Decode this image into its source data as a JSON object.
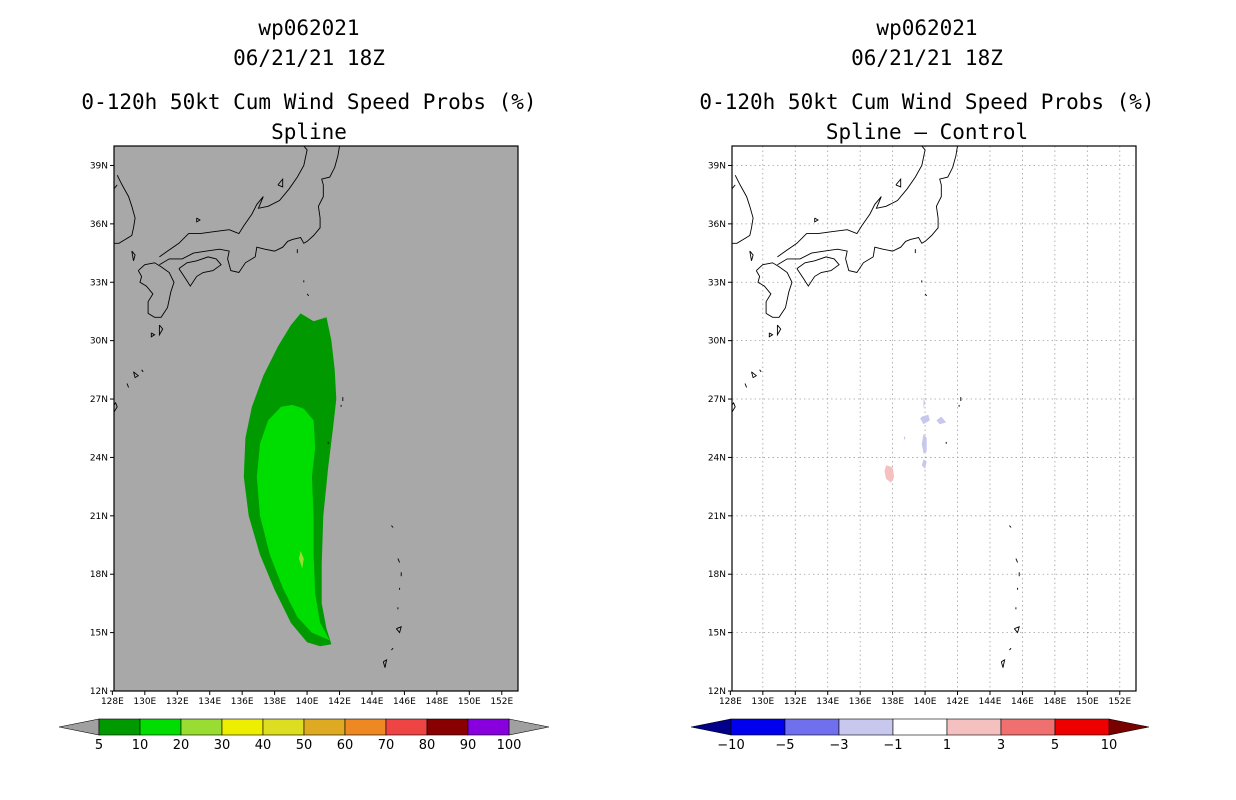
{
  "panels": [
    {
      "title_id": "wp062021",
      "title_date": "06/21/21 18Z",
      "title_product": "0-120h 50kt Cum Wind Speed Probs (%)",
      "title_subtitle": "Spline",
      "colorbar": {
        "labels": [
          "5",
          "10",
          "20",
          "30",
          "40",
          "50",
          "60",
          "70",
          "80",
          "90",
          "100"
        ],
        "colors": [
          "#009900",
          "#00dd00",
          "#99dd33",
          "#eeee00",
          "#dddd22",
          "#ddaa22",
          "#ee8822",
          "#ee4444",
          "#880000",
          "#8800dd"
        ],
        "under_color": "#a0a0a0",
        "over_color": "#a0a0a0"
      },
      "map_background": "#a8a8a8"
    },
    {
      "title_id": "wp062021",
      "title_date": "06/21/21 18Z",
      "title_product": "0-120h 50kt Cum Wind Speed Probs (%)",
      "title_subtitle": "Spline — Control",
      "colorbar": {
        "labels": [
          "−10",
          "−5",
          "−3",
          "−1",
          "1",
          "3",
          "5",
          "10"
        ],
        "colors": [
          "#0000ee",
          "#7070ee",
          "#c8c8ee",
          "#ffffff",
          "#f4c0c0",
          "#f07070",
          "#ee0000"
        ],
        "under_color": "#00008b",
        "over_color": "#7a0000"
      },
      "map_background": "#ffffff"
    }
  ],
  "axes": {
    "lon_labels": [
      "128E",
      "130E",
      "132E",
      "134E",
      "136E",
      "138E",
      "140E",
      "142E",
      "144E",
      "146E",
      "148E",
      "150E",
      "152E"
    ],
    "lat_labels": [
      "12N",
      "15N",
      "18N",
      "21N",
      "24N",
      "27N",
      "30N",
      "33N",
      "36N",
      "39N"
    ],
    "lon_values": [
      128,
      130,
      132,
      134,
      136,
      138,
      140,
      142,
      144,
      146,
      148,
      150,
      152
    ],
    "lat_values": [
      12,
      15,
      18,
      21,
      24,
      27,
      30,
      33,
      36,
      39
    ],
    "lon_range": [
      128,
      153
    ],
    "lat_range": [
      12,
      40
    ]
  },
  "probability_shapes": {
    "band_5_10": [
      [
        139.6,
        31.4
      ],
      [
        140.4,
        31.0
      ],
      [
        141.2,
        31.2
      ],
      [
        141.5,
        30.0
      ],
      [
        141.7,
        28.5
      ],
      [
        141.8,
        27.0
      ],
      [
        141.6,
        25.5
      ],
      [
        141.3,
        23.5
      ],
      [
        141.0,
        21.0
      ],
      [
        140.9,
        18.5
      ],
      [
        140.9,
        16.5
      ],
      [
        141.2,
        15.2
      ],
      [
        141.5,
        14.4
      ],
      [
        140.8,
        14.3
      ],
      [
        140.0,
        14.5
      ],
      [
        139.0,
        15.5
      ],
      [
        138.0,
        17.2
      ],
      [
        137.1,
        19.0
      ],
      [
        136.4,
        21.0
      ],
      [
        136.1,
        23.0
      ],
      [
        136.2,
        25.0
      ],
      [
        136.6,
        26.6
      ],
      [
        137.3,
        28.2
      ],
      [
        138.2,
        29.7
      ],
      [
        139.0,
        30.8
      ]
    ],
    "band_10_20": [
      [
        139.1,
        26.7
      ],
      [
        139.8,
        26.5
      ],
      [
        140.4,
        25.9
      ],
      [
        140.5,
        24.5
      ],
      [
        140.3,
        23.0
      ],
      [
        140.4,
        21.0
      ],
      [
        140.4,
        19.0
      ],
      [
        140.5,
        17.0
      ],
      [
        140.8,
        15.5
      ],
      [
        141.4,
        14.6
      ],
      [
        140.3,
        15.0
      ],
      [
        139.4,
        15.8
      ],
      [
        138.5,
        17.3
      ],
      [
        137.7,
        19.0
      ],
      [
        137.1,
        21.0
      ],
      [
        136.9,
        23.0
      ],
      [
        137.1,
        24.7
      ],
      [
        137.6,
        25.9
      ],
      [
        138.4,
        26.6
      ]
    ],
    "band_20_30": [
      [
        139.6,
        19.2
      ],
      [
        139.8,
        18.8
      ],
      [
        139.7,
        18.3
      ],
      [
        139.5,
        18.8
      ]
    ],
    "diff_neg": [
      [
        [
          139.9,
          27.1
        ],
        [
          140.0,
          26.8
        ],
        [
          139.9,
          26.5
        ]
      ],
      [
        [
          139.8,
          26.1
        ],
        [
          140.2,
          26.2
        ],
        [
          140.3,
          25.9
        ],
        [
          139.9,
          25.7
        ],
        [
          139.7,
          26.0
        ]
      ],
      [
        [
          141.0,
          26.1
        ],
        [
          141.3,
          25.8
        ],
        [
          140.9,
          25.7
        ],
        [
          140.7,
          25.9
        ]
      ],
      [
        [
          139.9,
          25.2
        ],
        [
          140.1,
          25.0
        ],
        [
          140.1,
          24.3
        ],
        [
          139.9,
          24.2
        ],
        [
          139.8,
          24.7
        ]
      ],
      [
        [
          139.9,
          23.9
        ],
        [
          140.1,
          23.8
        ],
        [
          140.0,
          23.4
        ],
        [
          139.8,
          23.6
        ]
      ],
      [
        [
          138.7,
          25.1
        ],
        [
          138.8,
          25.0
        ],
        [
          138.7,
          24.9
        ]
      ]
    ],
    "diff_pos": [
      [
        [
          137.6,
          23.6
        ],
        [
          138.0,
          23.5
        ],
        [
          138.1,
          23.0
        ],
        [
          137.9,
          22.7
        ],
        [
          137.6,
          22.9
        ],
        [
          137.5,
          23.3
        ]
      ]
    ]
  }
}
